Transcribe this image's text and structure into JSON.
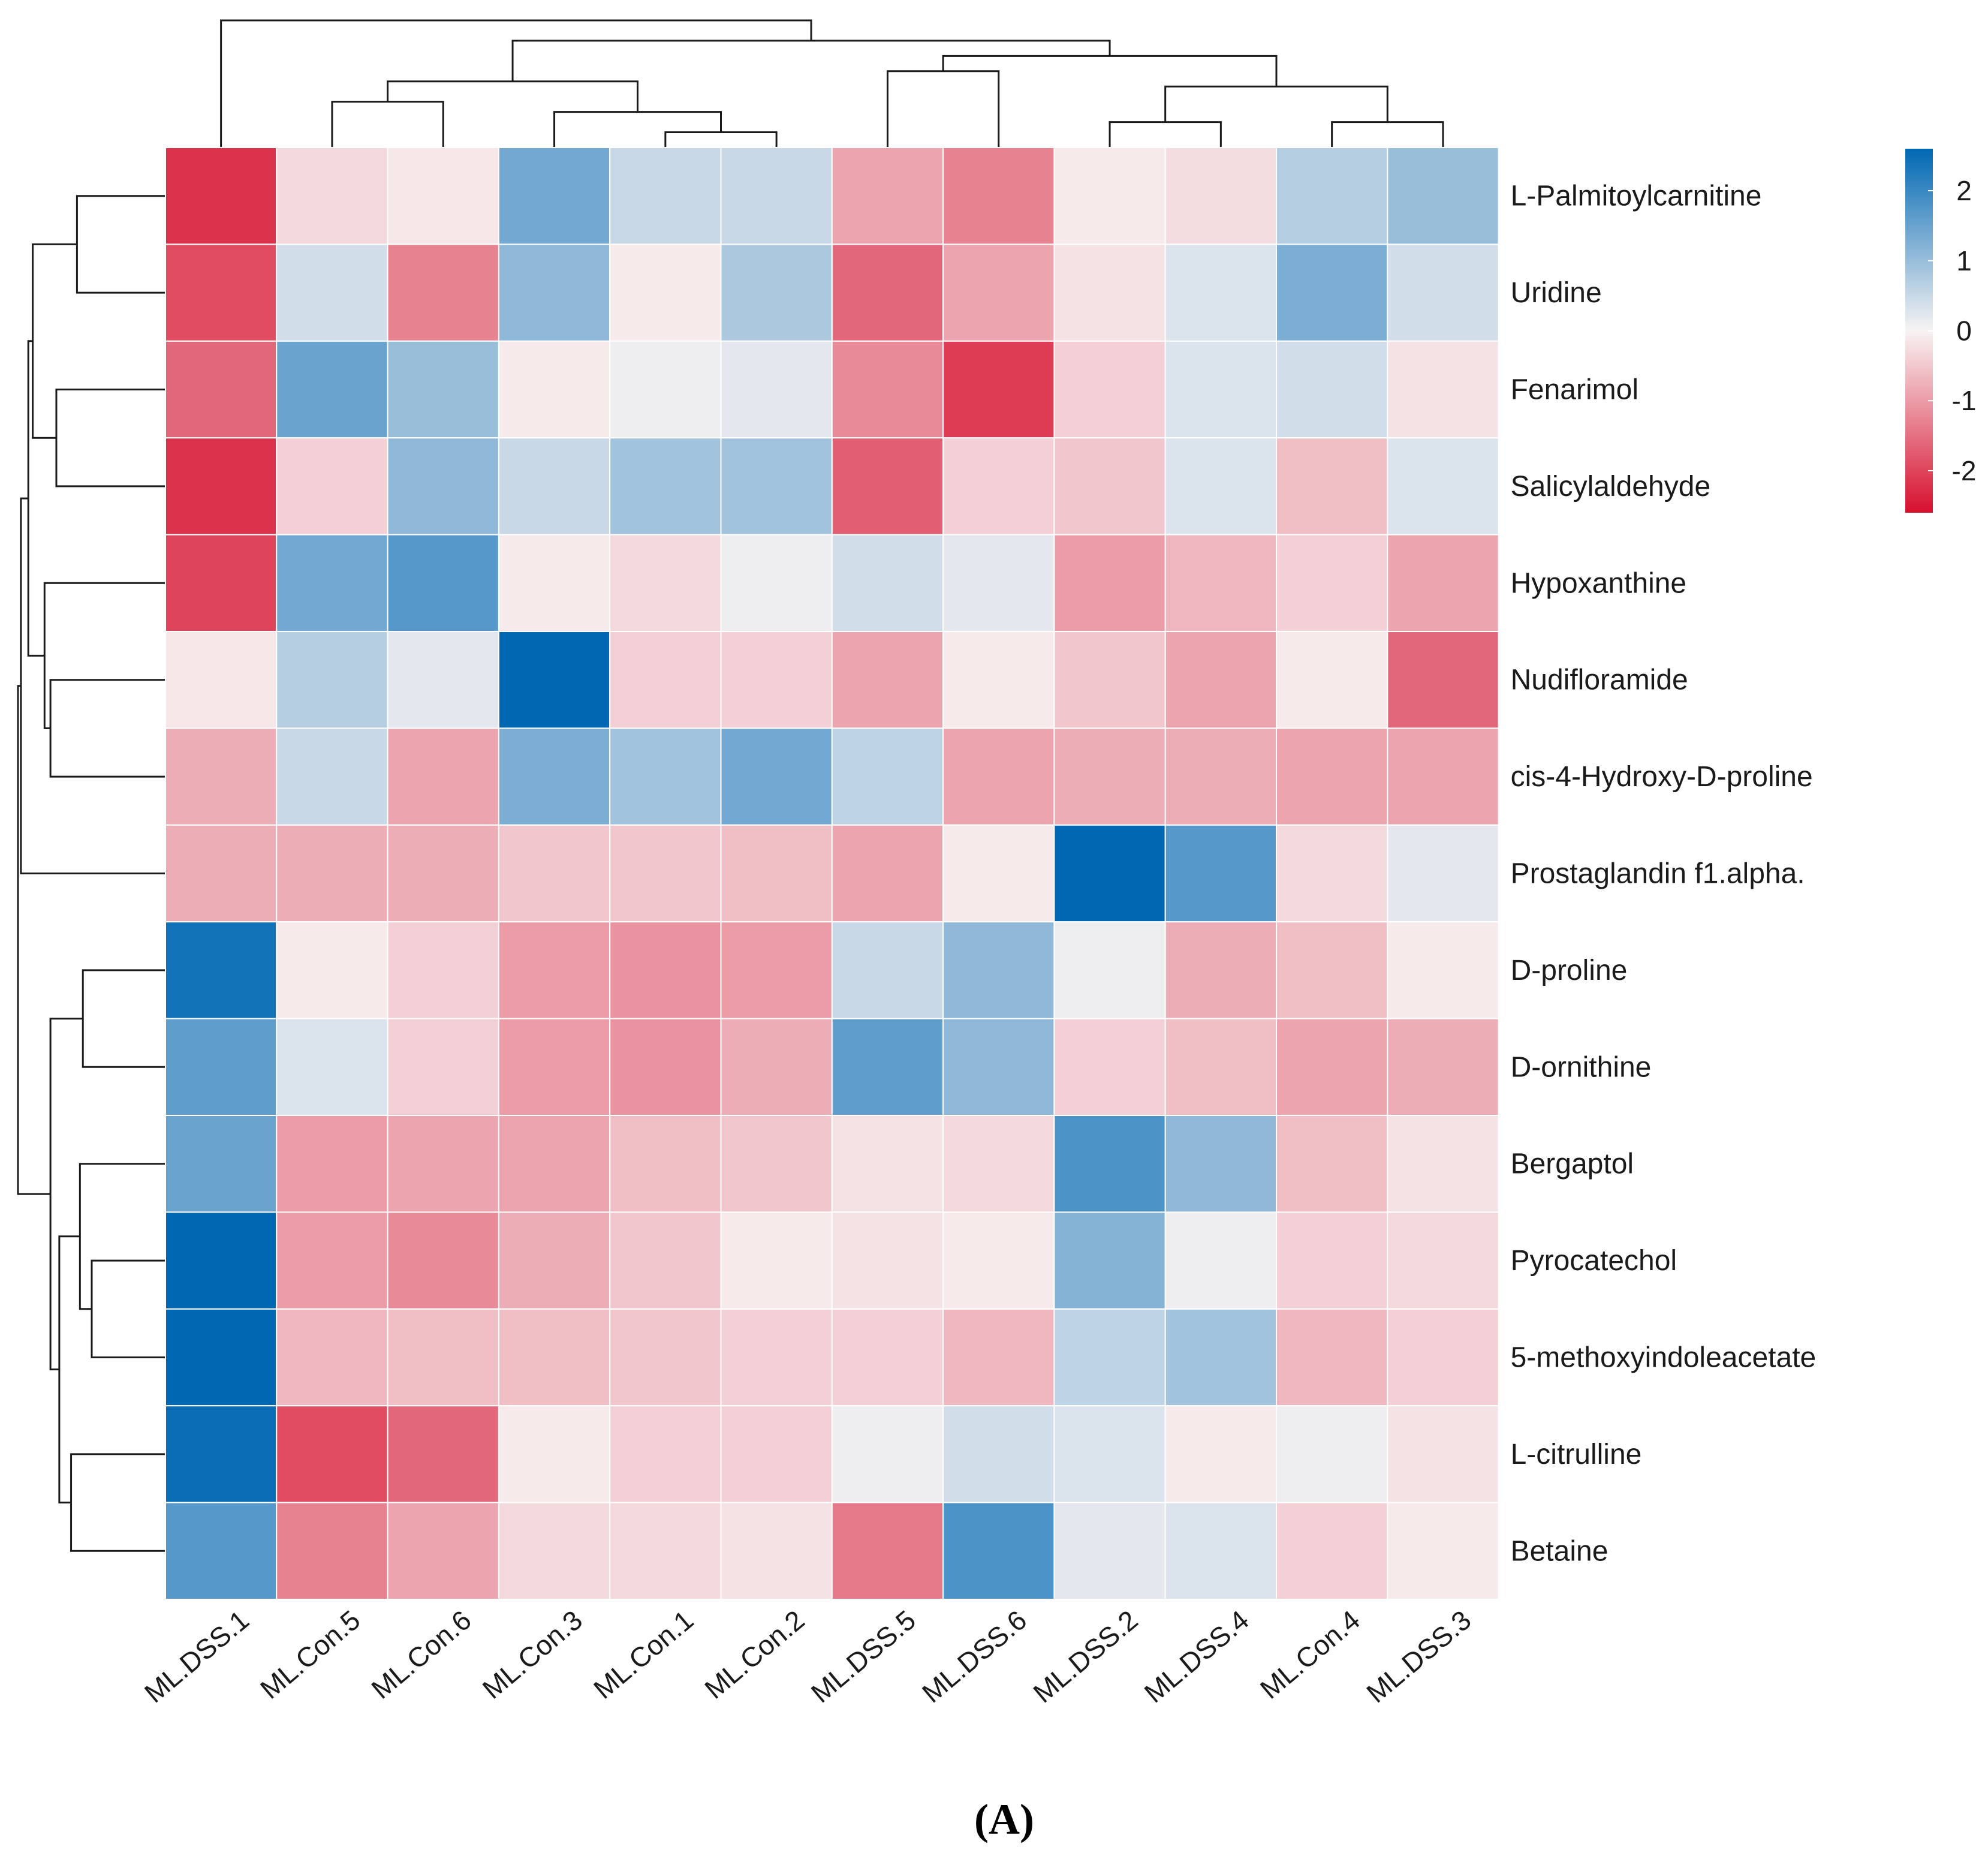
{
  "chart_data": {
    "type": "heatmap",
    "panel_label": "(A)",
    "rows": [
      "L-Palmitoylcarnitine",
      "Uridine",
      "Fenarimol",
      "Salicylaldehyde",
      "Hypoxanthine",
      "Nudifloramide",
      "cis-4-Hydroxy-D-proline",
      "Prostaglandin f1.alpha.",
      "D-proline",
      "D-ornithine",
      "Bergaptol",
      "Pyrocatechol",
      "5-methoxyindoleacetate",
      "L-citrulline",
      "Betaine"
    ],
    "columns": [
      "ML.DSS.1",
      "ML.Con.5",
      "ML.Con.6",
      "ML.Con.3",
      "ML.Con.1",
      "ML.Con.2",
      "ML.DSS.5",
      "ML.DSS.6",
      "ML.DSS.2",
      "ML.DSS.4",
      "ML.Con.4",
      "ML.DSS.3"
    ],
    "values": [
      [
        -2.2,
        -0.3,
        -0.15,
        1.4,
        0.5,
        0.5,
        -0.9,
        -1.3,
        -0.1,
        -0.25,
        0.7,
        1.0
      ],
      [
        -1.9,
        0.4,
        -1.3,
        1.1,
        -0.1,
        0.8,
        -1.6,
        -0.9,
        -0.2,
        0.3,
        1.3,
        0.4
      ],
      [
        -1.6,
        1.5,
        1.0,
        -0.1,
        0.1,
        0.2,
        -1.2,
        -2.1,
        -0.4,
        0.3,
        0.4,
        -0.2
      ],
      [
        -2.2,
        -0.4,
        1.1,
        0.5,
        0.9,
        0.9,
        -1.7,
        -0.4,
        -0.5,
        0.3,
        -0.6,
        0.3
      ],
      [
        -2.0,
        1.4,
        1.7,
        -0.1,
        -0.3,
        0.1,
        0.4,
        0.2,
        -1.0,
        -0.7,
        -0.4,
        -0.9
      ],
      [
        -0.15,
        0.7,
        0.2,
        2.6,
        -0.4,
        -0.4,
        -0.9,
        -0.1,
        -0.5,
        -0.9,
        -0.1,
        -1.6
      ],
      [
        -0.8,
        0.5,
        -0.9,
        1.3,
        0.9,
        1.4,
        0.6,
        -0.9,
        -0.8,
        -0.8,
        -0.9,
        -0.9
      ],
      [
        -0.8,
        -0.8,
        -0.8,
        -0.5,
        -0.5,
        -0.6,
        -0.9,
        -0.1,
        2.6,
        1.7,
        -0.3,
        0.2
      ],
      [
        2.4,
        -0.1,
        -0.4,
        -1.0,
        -1.1,
        -1.0,
        0.5,
        1.1,
        0.1,
        -0.8,
        -0.6,
        -0.1
      ],
      [
        1.6,
        0.3,
        -0.4,
        -1.0,
        -1.1,
        -0.8,
        1.6,
        1.1,
        -0.4,
        -0.6,
        -0.9,
        -0.8
      ],
      [
        1.5,
        -1.0,
        -0.9,
        -0.9,
        -0.6,
        -0.5,
        -0.2,
        -0.3,
        1.8,
        1.1,
        -0.6,
        -0.2
      ],
      [
        2.6,
        -1.0,
        -1.2,
        -0.8,
        -0.5,
        -0.1,
        -0.2,
        -0.1,
        1.2,
        0.1,
        -0.4,
        -0.3
      ],
      [
        2.6,
        -0.7,
        -0.6,
        -0.6,
        -0.5,
        -0.4,
        -0.4,
        -0.7,
        0.6,
        0.9,
        -0.7,
        -0.4
      ],
      [
        2.5,
        -1.9,
        -1.6,
        -0.1,
        -0.4,
        -0.4,
        0.1,
        0.4,
        0.3,
        -0.1,
        0.1,
        -0.2
      ],
      [
        1.7,
        -1.3,
        -0.9,
        -0.3,
        -0.3,
        -0.2,
        -1.4,
        1.8,
        0.2,
        0.3,
        -0.4,
        -0.1
      ]
    ],
    "colorbar": {
      "range": [
        -2.6,
        2.6
      ],
      "ticks": [
        2,
        1,
        0,
        -1,
        -2
      ],
      "tick_labels": [
        "2",
        "1",
        "0",
        "-1",
        "-2"
      ],
      "low_color": "#d7102e",
      "mid_color": "#f7f3f3",
      "high_color": "#0068b3"
    },
    "column_dendrogram": [
      [
        4,
        5,
        0.12
      ],
      [
        3,
        12,
        0.28
      ],
      [
        1,
        2,
        0.36
      ],
      [
        14,
        13,
        0.52
      ],
      [
        8,
        9,
        0.2
      ],
      [
        10,
        11,
        0.2
      ],
      [
        16,
        17,
        0.48
      ],
      [
        6,
        7,
        0.6
      ],
      [
        19,
        18,
        0.72
      ],
      [
        15,
        20,
        0.84
      ],
      [
        0,
        21,
        1.0
      ]
    ],
    "row_dendrogram": [
      [
        0,
        1,
        0.6
      ],
      [
        2,
        3,
        0.74
      ],
      [
        15,
        16,
        0.9
      ],
      [
        5,
        6,
        0.78
      ],
      [
        4,
        18,
        0.82
      ],
      [
        17,
        19,
        0.93
      ],
      [
        7,
        20,
        0.98
      ],
      [
        8,
        9,
        0.56
      ],
      [
        11,
        12,
        0.5
      ],
      [
        10,
        23,
        0.58
      ],
      [
        13,
        14,
        0.64
      ],
      [
        24,
        25,
        0.72
      ],
      [
        22,
        26,
        0.78
      ],
      [
        21,
        27,
        1.0
      ]
    ]
  }
}
